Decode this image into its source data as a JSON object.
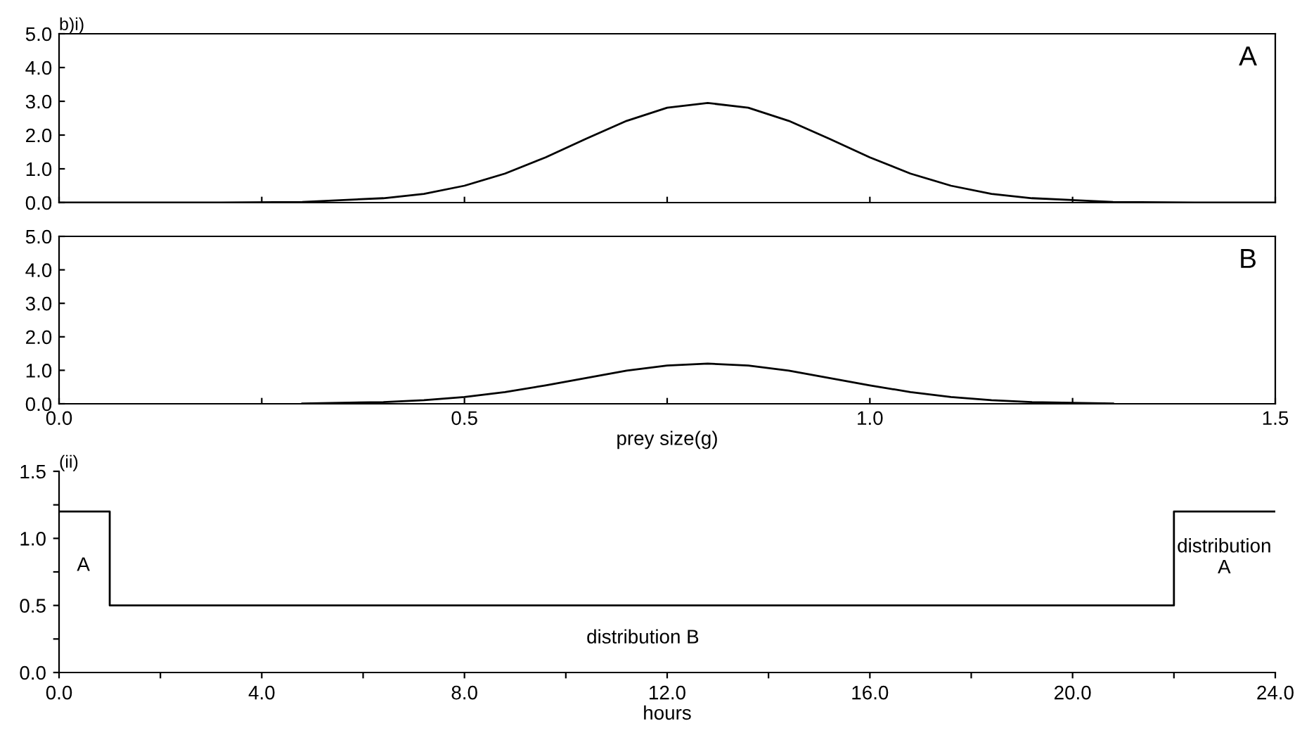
{
  "chart_data": [
    {
      "type": "line",
      "title": "b)i)",
      "tick_labels": "y",
      "xlim": [
        0.0,
        1.5
      ],
      "ylim": [
        0.0,
        5.0
      ],
      "xticks": [
        {
          "value": 0.0,
          "label": null
        },
        {
          "value": 0.25,
          "label": null
        },
        {
          "value": 0.5,
          "label": null
        },
        {
          "value": 0.75,
          "label": null
        },
        {
          "value": 1.0,
          "label": null
        },
        {
          "value": 1.25,
          "label": null
        },
        {
          "value": 1.5,
          "label": null
        }
      ],
      "yticks": [
        {
          "value": 0.0,
          "label": "0.0"
        },
        {
          "value": 1.0,
          "label": "1.0"
        },
        {
          "value": 2.0,
          "label": "2.0"
        },
        {
          "value": 3.0,
          "label": "3.0"
        },
        {
          "value": 4.0,
          "label": "4.0"
        },
        {
          "value": 5.0,
          "label": "5.0"
        }
      ],
      "annotations": [
        "A"
      ],
      "grid": false,
      "legend": false,
      "series": [
        {
          "color": "#000000",
          "x": [
            0.0,
            0.1,
            0.2,
            0.3,
            0.4,
            0.45,
            0.5,
            0.55,
            0.6,
            0.65,
            0.7,
            0.75,
            0.8,
            0.85,
            0.9,
            0.95,
            1.0,
            1.05,
            1.1,
            1.15,
            1.2,
            1.3,
            1.4,
            1.5
          ],
          "values": [
            0.0,
            0.0,
            0.0,
            0.02,
            0.13,
            0.26,
            0.5,
            0.86,
            1.34,
            1.89,
            2.42,
            2.81,
            2.95,
            2.81,
            2.42,
            1.89,
            1.34,
            0.86,
            0.5,
            0.26,
            0.13,
            0.02,
            0.0,
            0.0
          ]
        }
      ]
    },
    {
      "type": "line",
      "xlabel": "prey size(g)",
      "xlim": [
        0.0,
        1.5
      ],
      "ylim": [
        0.0,
        5.0
      ],
      "xticks": [
        {
          "value": 0.0,
          "label": "0.0"
        },
        {
          "value": 0.25,
          "label": null
        },
        {
          "value": 0.5,
          "label": "0.5"
        },
        {
          "value": 0.75,
          "label": null
        },
        {
          "value": 1.0,
          "label": "1.0"
        },
        {
          "value": 1.25,
          "label": null
        },
        {
          "value": 1.5,
          "label": "1.5"
        }
      ],
      "yticks": [
        {
          "value": 0.0,
          "label": "0.0"
        },
        {
          "value": 1.0,
          "label": "1.0"
        },
        {
          "value": 2.0,
          "label": "2.0"
        },
        {
          "value": 3.0,
          "label": "3.0"
        },
        {
          "value": 4.0,
          "label": "4.0"
        },
        {
          "value": 5.0,
          "label": "5.0"
        }
      ],
      "annotations": [
        "B"
      ],
      "grid": false,
      "legend": false,
      "series": [
        {
          "color": "#000000",
          "x": [
            0.3,
            0.4,
            0.45,
            0.5,
            0.55,
            0.6,
            0.65,
            0.7,
            0.75,
            0.8,
            0.85,
            0.9,
            0.95,
            1.0,
            1.05,
            1.1,
            1.15,
            1.2,
            1.3
          ],
          "values": [
            0.01,
            0.05,
            0.11,
            0.2,
            0.35,
            0.55,
            0.77,
            0.99,
            1.14,
            1.2,
            1.14,
            0.99,
            0.77,
            0.55,
            0.35,
            0.2,
            0.11,
            0.05,
            0.01
          ]
        }
      ]
    },
    {
      "type": "step",
      "title": "(ii)",
      "xlabel": "hours",
      "xlim": [
        0.0,
        24.0
      ],
      "ylim": [
        0.0,
        1.5
      ],
      "xticks": [
        {
          "value": 0.0,
          "label": "0.0"
        },
        {
          "value": 2.0,
          "label": null
        },
        {
          "value": 4.0,
          "label": "4.0"
        },
        {
          "value": 6.0,
          "label": null
        },
        {
          "value": 8.0,
          "label": "8.0"
        },
        {
          "value": 10.0,
          "label": null
        },
        {
          "value": 12.0,
          "label": "12.0"
        },
        {
          "value": 14.0,
          "label": null
        },
        {
          "value": 16.0,
          "label": "16.0"
        },
        {
          "value": 18.0,
          "label": null
        },
        {
          "value": 20.0,
          "label": "20.0"
        },
        {
          "value": 22.0,
          "label": null
        },
        {
          "value": 24.0,
          "label": "24.0"
        }
      ],
      "yticks": [
        {
          "value": 0.0,
          "label": "0.0"
        },
        {
          "value": 0.25,
          "label": null
        },
        {
          "value": 0.5,
          "label": "0.5"
        },
        {
          "value": 0.75,
          "label": null
        },
        {
          "value": 1.0,
          "label": "1.0"
        },
        {
          "value": 1.25,
          "label": null
        },
        {
          "value": 1.5,
          "label": "1.5"
        }
      ],
      "annotations": [
        "A",
        "distribution B",
        "distribution\nA"
      ],
      "grid": false,
      "legend": false,
      "series": [
        {
          "color": "#000000",
          "x": [
            0.0,
            1.0,
            22.0,
            24.0
          ],
          "values": [
            1.2,
            0.5,
            1.2,
            1.2
          ]
        }
      ]
    }
  ]
}
